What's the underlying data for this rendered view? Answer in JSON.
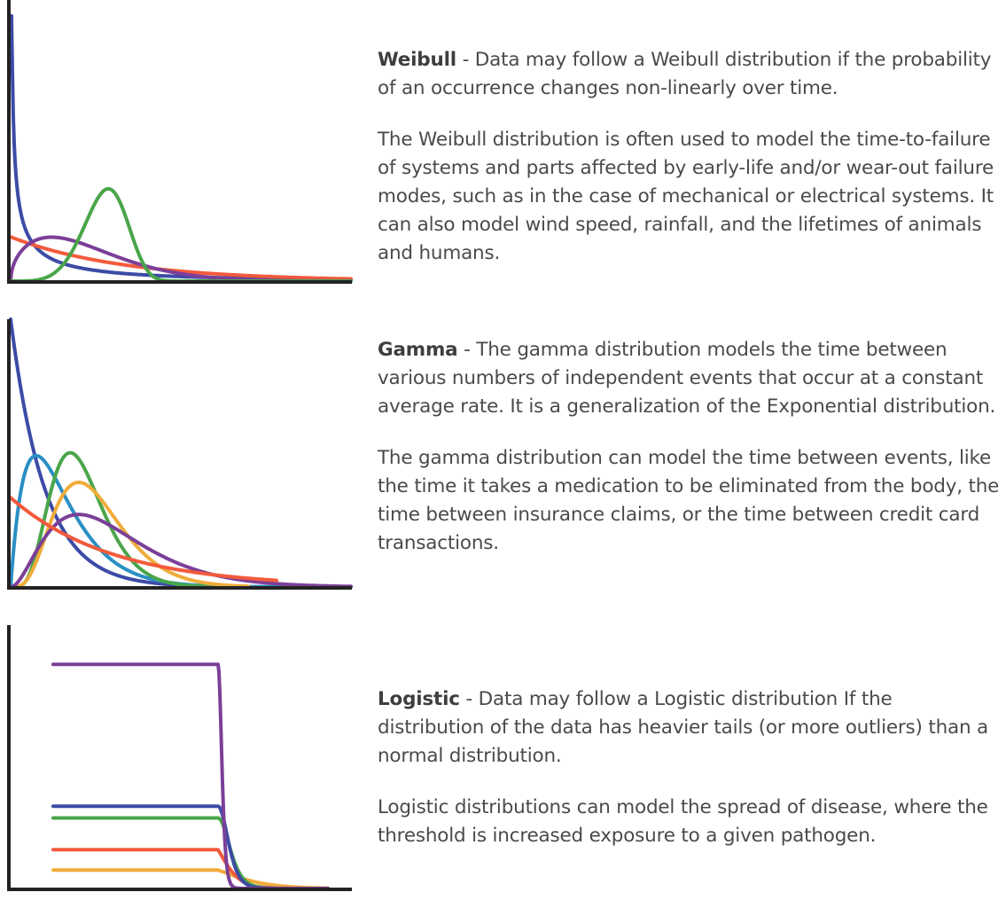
{
  "sections": [
    {
      "term": "Weibull",
      "lead": " - Data may follow a Weibull distribution if the probability of an occurrence changes non-linearly over time.",
      "detail": "The Weibull distribution is often used to model the time-to-failure of systems and parts affected by early-life and/or wear-out failure modes, such as in the case of mechanical or electrical systems. It can also model wind speed, rainfall, and the lifetimes of animals and humans."
    },
    {
      "term": "Gamma",
      "lead": " - The gamma distribution models the time between various numbers of independent events that occur at a constant average rate. It is a generalization of the Exponential distribution.",
      "detail": "The gamma distribution can model the time between events, like the time it takes a medication to be eliminated from the body, the time between insurance claims, or the time between credit card transactions."
    },
    {
      "term": "Logistic",
      "lead": " - Data may follow a Logistic distribution If the distribution of the data has heavier tails (or more outliers) than a normal distribution.",
      "detail": "Logistic distributions can model the spread of disease, where the threshold is increased exposure to a given pathogen."
    }
  ],
  "chart_data": [
    {
      "type": "line",
      "family": "weibull",
      "x": [
        0,
        6
      ],
      "ylim": [
        0,
        3
      ],
      "grid": false,
      "series": [
        {
          "shape": 0.5,
          "scale": 1,
          "color": "#3c4ba6"
        },
        {
          "shape": 1,
          "scale": 2,
          "color": "#f25a3c"
        },
        {
          "shape": 1.5,
          "scale": 1.5,
          "color": "#7b3f98"
        },
        {
          "shape": 5,
          "scale": 1.8,
          "color": "#4aa54a"
        }
      ]
    },
    {
      "type": "line",
      "family": "gamma",
      "x": [
        0,
        20
      ],
      "ylim": [
        0,
        0.5
      ],
      "grid": false,
      "series": [
        {
          "shape": 1,
          "scale": 2,
          "color": "#3c4ba6"
        },
        {
          "shape": 2,
          "scale": 1.5,
          "color": "#2a8fc4"
        },
        {
          "shape": 6,
          "scale": 0.7,
          "color": "#4aa54a"
        },
        {
          "shape": 5,
          "scale": 1,
          "color": "#f0ac3a"
        },
        {
          "shape": 3,
          "scale": 2,
          "color": "#7b3f98"
        },
        {
          "shape": 1,
          "scale": 6,
          "color": "#f25a3c"
        }
      ]
    },
    {
      "type": "line",
      "family": "logistic",
      "x": [
        -15,
        10
      ],
      "ylim": [
        0,
        1.2
      ],
      "grid": false,
      "series": [
        {
          "location": -2,
          "scale": 2.2,
          "color": "#f0ac3a"
        },
        {
          "location": -1,
          "scale": 1,
          "color": "#f25a3c"
        },
        {
          "location": 0,
          "scale": 0.7,
          "color": "#4aa54a"
        },
        {
          "location": 0,
          "scale": 0.6,
          "color": "#3c4ba6"
        },
        {
          "location": 0,
          "scale": 0.22,
          "color": "#7b3f98"
        }
      ]
    }
  ]
}
